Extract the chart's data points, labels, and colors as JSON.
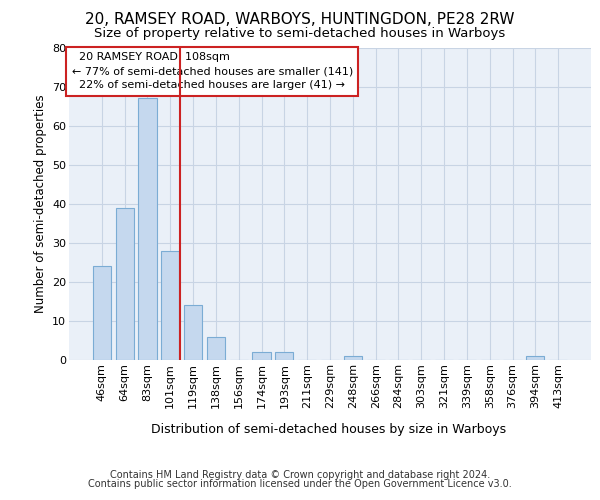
{
  "title1": "20, RAMSEY ROAD, WARBOYS, HUNTINGDON, PE28 2RW",
  "title2": "Size of property relative to semi-detached houses in Warboys",
  "xlabel": "Distribution of semi-detached houses by size in Warboys",
  "ylabel": "Number of semi-detached properties",
  "footnote1": "Contains HM Land Registry data © Crown copyright and database right 2024.",
  "footnote2": "Contains public sector information licensed under the Open Government Licence v3.0.",
  "bin_labels": [
    "46sqm",
    "64sqm",
    "83sqm",
    "101sqm",
    "119sqm",
    "138sqm",
    "156sqm",
    "174sqm",
    "193sqm",
    "211sqm",
    "229sqm",
    "248sqm",
    "266sqm",
    "284sqm",
    "303sqm",
    "321sqm",
    "339sqm",
    "358sqm",
    "376sqm",
    "394sqm",
    "413sqm"
  ],
  "bar_values": [
    24,
    39,
    67,
    28,
    14,
    6,
    0,
    2,
    2,
    0,
    0,
    1,
    0,
    0,
    0,
    0,
    0,
    0,
    0,
    1,
    0
  ],
  "bar_color": "#c5d8ee",
  "bar_edge_color": "#7bacd4",
  "vline_index": 3.42,
  "subject_label": "20 RAMSEY ROAD: 108sqm",
  "pct_smaller": 77,
  "n_smaller": 141,
  "pct_larger": 22,
  "n_larger": 41,
  "red_color": "#cc2222",
  "bg_color": "#eaf0f8",
  "ylim_max": 80,
  "yticks": [
    0,
    10,
    20,
    30,
    40,
    50,
    60,
    70,
    80
  ],
  "grid_color": "#c8d4e4",
  "title1_fontsize": 11,
  "title2_fontsize": 9.5,
  "xlabel_fontsize": 9,
  "ylabel_fontsize": 8.5,
  "annot_fontsize": 8,
  "tick_fontsize": 8,
  "footnote_fontsize": 7
}
